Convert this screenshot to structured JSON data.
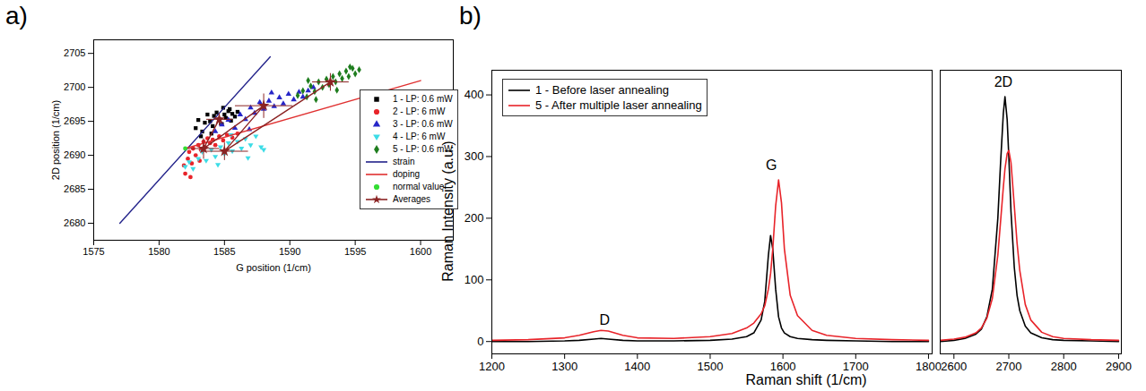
{
  "chart_data": [
    {
      "type": "scatter",
      "title": "a)",
      "x_label": "G position (1/cm)",
      "y_label": "2D position (1/cm)",
      "xlim": [
        1575,
        1602.5
      ],
      "ylim": [
        2677.5,
        2707
      ],
      "xticks": [
        1575,
        1580,
        1585,
        1590,
        1595,
        1600
      ],
      "yticks": [
        2680,
        2685,
        2690,
        2695,
        2700,
        2705
      ],
      "legend": "right",
      "series": [
        {
          "name": "1 - LP: 0.6 mW",
          "type": "scatter",
          "marker": "square",
          "color": "#000000",
          "x": [
            1582.8,
            1583.0,
            1583.3,
            1583.5,
            1583.7,
            1583.9,
            1584.1,
            1584.2,
            1584.4,
            1584.6,
            1584.8,
            1585.0,
            1585.1,
            1585.3,
            1585.5,
            1585.6,
            1585.8,
            1586.0,
            1584.0,
            1583.2,
            1584.9,
            1585.4
          ],
          "values": [
            2694.0,
            2695.2,
            2693.5,
            2694.8,
            2696.0,
            2695.0,
            2694.3,
            2695.8,
            2696.3,
            2695.3,
            2694.6,
            2696.0,
            2695.5,
            2696.5,
            2695.1,
            2696.1,
            2695.7,
            2696.4,
            2693.2,
            2692.8,
            2697.0,
            2696.8
          ]
        },
        {
          "name": "2 - LP: 6 mW",
          "type": "scatter",
          "marker": "circle",
          "color": "#e8242a",
          "x": [
            1581.9,
            1582.0,
            1582.2,
            1582.3,
            1582.5,
            1582.6,
            1582.8,
            1583.0,
            1583.2,
            1583.4,
            1583.5,
            1583.7,
            1583.9,
            1584.1,
            1584.3,
            1584.6,
            1584.9,
            1585.2,
            1585.6,
            1586.0,
            1582.4,
            1583.1
          ],
          "values": [
            2688.5,
            2687.3,
            2689.5,
            2690.5,
            2688.8,
            2691.0,
            2690.0,
            2691.5,
            2690.8,
            2692.0,
            2691.2,
            2692.5,
            2691.8,
            2692.3,
            2691.5,
            2692.8,
            2692.2,
            2693.0,
            2692.6,
            2693.2,
            2686.8,
            2689.2
          ]
        },
        {
          "name": "3 - LP: 0.6 mW",
          "type": "scatter",
          "marker": "triangle-up",
          "color": "#2626c8",
          "x": [
            1584.3,
            1584.8,
            1585.3,
            1585.8,
            1586.2,
            1586.6,
            1587.0,
            1587.3,
            1587.7,
            1588.0,
            1588.4,
            1588.8,
            1589.2,
            1589.5,
            1589.9,
            1590.3,
            1590.7,
            1591.0,
            1591.4,
            1591.8,
            1586.9,
            1588.6
          ],
          "values": [
            2693.5,
            2694.5,
            2695.2,
            2694.0,
            2696.0,
            2695.3,
            2697.0,
            2696.2,
            2697.8,
            2696.8,
            2698.0,
            2697.2,
            2698.5,
            2697.6,
            2699.0,
            2698.2,
            2699.3,
            2698.6,
            2699.5,
            2700.0,
            2693.8,
            2699.2
          ]
        },
        {
          "name": "4 - LP: 6 mW",
          "type": "scatter",
          "marker": "triangle-down",
          "color": "#3cdce6",
          "x": [
            1582.0,
            1582.3,
            1582.6,
            1583.0,
            1583.3,
            1583.6,
            1584.0,
            1584.3,
            1584.7,
            1585.0,
            1585.3,
            1585.6,
            1586.0,
            1586.3,
            1586.6,
            1587.0,
            1587.4,
            1587.8,
            1588.0,
            1584.5,
            1586.8,
            1585.5
          ],
          "values": [
            2688.3,
            2689.0,
            2688.0,
            2689.5,
            2690.5,
            2689.2,
            2690.8,
            2689.8,
            2691.2,
            2690.2,
            2691.8,
            2690.6,
            2692.0,
            2691.0,
            2692.4,
            2691.5,
            2692.8,
            2691.2,
            2690.8,
            2688.6,
            2689.6,
            2693.0
          ]
        },
        {
          "name": "5 - LP: 0.6 mW",
          "type": "scatter",
          "marker": "diamond",
          "color": "#1e7d1e",
          "x": [
            1590.6,
            1591.0,
            1591.3,
            1591.6,
            1591.9,
            1592.2,
            1592.5,
            1592.8,
            1593.0,
            1593.3,
            1593.5,
            1593.8,
            1594.0,
            1594.3,
            1594.5,
            1594.8,
            1595.0,
            1595.3,
            1592.0,
            1593.6,
            1594.6,
            1591.4
          ],
          "values": [
            2698.8,
            2699.5,
            2698.6,
            2700.2,
            2699.4,
            2700.8,
            2700.0,
            2701.2,
            2700.4,
            2701.6,
            2700.8,
            2702.0,
            2701.3,
            2702.4,
            2701.6,
            2702.8,
            2702.0,
            2702.6,
            2698.2,
            2699.6,
            2703.0,
            2701.0
          ]
        },
        {
          "name": "strain",
          "type": "line",
          "line_style": "solid",
          "color": "#22228a",
          "x": [
            1577,
            1588.5
          ],
          "values": [
            2680,
            2704.5
          ]
        },
        {
          "name": "doping",
          "type": "line",
          "line_style": "solid",
          "color": "#e03030",
          "x": [
            1582,
            1600
          ],
          "values": [
            2691,
            2701
          ]
        },
        {
          "name": "normal value",
          "type": "scatter",
          "marker": "circle",
          "color": "#33dd33",
          "x": [
            1582
          ],
          "values": [
            2691
          ]
        },
        {
          "name": "Averages",
          "type": "line",
          "line_style": "solid",
          "marker": "star",
          "color": "#8b2323",
          "x": [
            1584.6,
            1583.4,
            1588.0,
            1585.0,
            1593.1
          ],
          "values": [
            2695.3,
            2691.0,
            2697.3,
            2690.6,
            2700.8
          ],
          "x_errors": [
            1.0,
            1.2,
            2.2,
            1.8,
            1.4
          ],
          "y_errors": [
            0.9,
            1.5,
            1.8,
            1.3,
            1.3
          ]
        }
      ]
    },
    {
      "type": "line",
      "title": "b)",
      "x_label": "Raman shift (1/cm)",
      "y_label": "Raman Intensity (a.u.)",
      "xlim": [
        [
          1200,
          1805
        ],
        [
          2575,
          2905
        ]
      ],
      "ylim": [
        -20,
        440
      ],
      "xticks": [
        1200,
        1300,
        1400,
        1500,
        1600,
        1700,
        1800,
        2600,
        2700,
        2800,
        2900
      ],
      "yticks": [
        0,
        100,
        200,
        300,
        400
      ],
      "legend": "upper left",
      "x": [
        1200,
        1250,
        1300,
        1320,
        1340,
        1350,
        1360,
        1380,
        1400,
        1450,
        1500,
        1530,
        1550,
        1560,
        1570,
        1575,
        1580,
        1583,
        1586,
        1590,
        1594,
        1598,
        1602,
        1610,
        1620,
        1640,
        1660,
        1700,
        1750,
        1800,
        2575,
        2600,
        2620,
        2640,
        2650,
        2660,
        2670,
        2680,
        2685,
        2690,
        2693,
        2697,
        2700,
        2704,
        2710,
        2715,
        2720,
        2730,
        2740,
        2760,
        2780,
        2800,
        2850,
        2900
      ],
      "series": [
        {
          "name": "1 - Before laser annealing",
          "color": "#000000",
          "values": [
            0,
            0,
            1,
            2,
            4,
            5,
            4,
            2,
            1,
            1,
            2,
            4,
            8,
            14,
            35,
            65,
            140,
            172,
            150,
            85,
            40,
            22,
            14,
            8,
            5,
            3,
            2,
            1,
            0,
            0,
            0,
            2,
            5,
            12,
            20,
            40,
            85,
            200,
            290,
            370,
            397,
            360,
            300,
            210,
            120,
            75,
            50,
            25,
            14,
            6,
            3,
            2,
            1,
            0
          ]
        },
        {
          "name": "5 - After multiple laser annealing",
          "color": "#e8242a",
          "values": [
            2,
            3,
            6,
            10,
            16,
            18,
            17,
            10,
            6,
            5,
            8,
            13,
            22,
            30,
            45,
            58,
            85,
            110,
            150,
            220,
            262,
            225,
            150,
            75,
            42,
            18,
            10,
            5,
            3,
            2,
            2,
            4,
            7,
            14,
            22,
            38,
            70,
            140,
            195,
            250,
            280,
            305,
            310,
            290,
            220,
            160,
            115,
            60,
            35,
            15,
            8,
            5,
            3,
            2
          ]
        }
      ],
      "annotations": [
        {
          "text": "D",
          "x": 1355,
          "y": 35
        },
        {
          "text": "G",
          "x": 1584,
          "y": 285
        },
        {
          "text": "2D",
          "x": 2690,
          "y": 420
        }
      ]
    }
  ]
}
